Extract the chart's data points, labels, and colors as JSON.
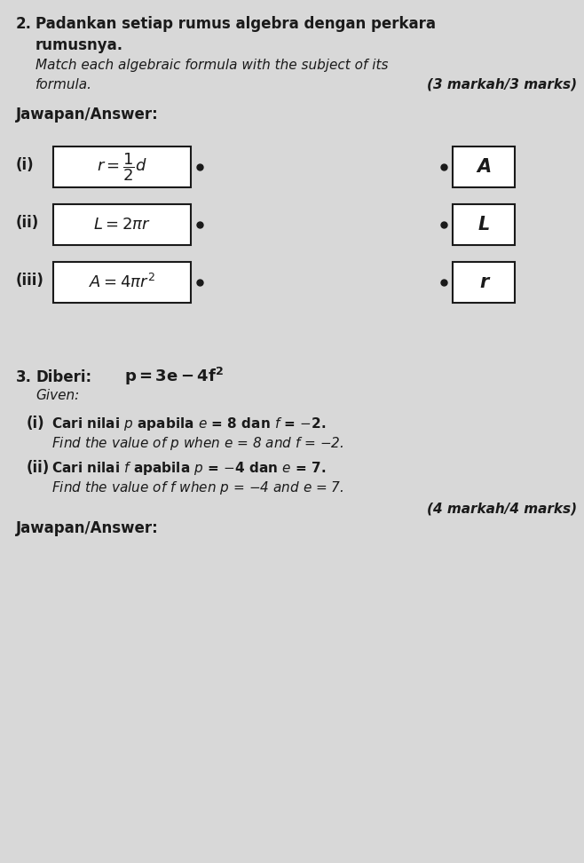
{
  "bg_color": "#d8d8d8",
  "text_color": "#1a1a1a",
  "q2_number": "2.",
  "q2_line1": "Padankan setiap rumus algebra dengan perkara",
  "q2_line2": "rumusnya.",
  "q2_line3": "Match each algebraic formula with the subject of its",
  "q2_line4": "formula.",
  "q2_marks": "(3 markah/3 marks)",
  "jawapan1": "Jawapan/Answer:",
  "roman": [
    "(i)",
    "(ii)",
    "(iii)"
  ],
  "subjects": [
    "A",
    "L",
    "r"
  ],
  "q3_number": "3.",
  "q3_diberi": "Diberi:",
  "q3_given": "Given:",
  "q3_marks": "(4 markah/4 marks)",
  "jawapan2": "Jawapan/Answer:"
}
